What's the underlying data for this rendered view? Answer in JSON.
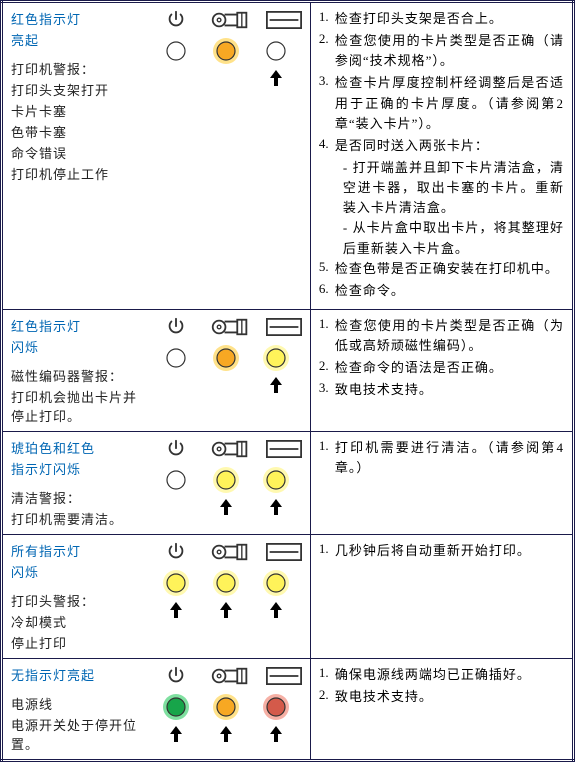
{
  "colors": {
    "border": "#1a1a4a",
    "title": "#0066b3",
    "text": "#222222",
    "led_off_fill": "#ffffff",
    "led_off_stroke": "#333333",
    "led_amber_fill": "#f7a823",
    "led_amber_glow": "#ffe28a",
    "led_yellow_fill": "#fff35a",
    "led_yellow_glow": "#fff9b0",
    "led_green_fill": "#17a54a",
    "led_green_glow": "#7fe0a0",
    "led_red_fill": "#d45a4a",
    "led_red_glow": "#f6b0a5",
    "icon_stroke": "#333333"
  },
  "header_icons": {
    "power": "power-icon",
    "roller": "roller-icon",
    "slot": "slot-icon"
  },
  "rows": [
    {
      "title_lines": [
        "红色指示灯",
        "亮起"
      ],
      "leds": [
        {
          "state": "off"
        },
        {
          "state": "amber"
        },
        {
          "state": "off"
        }
      ],
      "arrows": [
        false,
        false,
        true
      ],
      "desc_heading": "打印机警报：",
      "desc_lines": [
        "打印头支架打开",
        "卡片卡塞",
        "色带卡塞",
        "命令错误",
        "打印机停止工作"
      ],
      "steps": [
        {
          "n": "1.",
          "t": "检查打印头支架是否合上。"
        },
        {
          "n": "2.",
          "t": "检查您使用的卡片类型是否正确（请参阅“技术规格”）。"
        },
        {
          "n": "3.",
          "t": "检查卡片厚度控制杆经调整后是否适用于正确的卡片厚度。（请参阅第2章“装入卡片”）。"
        },
        {
          "n": "4.",
          "t": "是否同时送入两张卡片：",
          "subs": [
            "- 打开端盖并且卸下卡片清洁盒，清空进卡器，取出卡塞的卡片。重新装入卡片清洁盒。",
            "- 从卡片盒中取出卡片，将其整理好后重新装入卡片盒。"
          ]
        },
        {
          "n": "5.",
          "t": "检查色带是否正确安装在打印机中。"
        },
        {
          "n": "6.",
          "t": "检查命令。"
        }
      ]
    },
    {
      "title_lines": [
        "红色指示灯",
        "闪烁"
      ],
      "leds": [
        {
          "state": "off"
        },
        {
          "state": "amber"
        },
        {
          "state": "yellow"
        }
      ],
      "arrows": [
        false,
        false,
        true
      ],
      "desc_heading": "磁性编码器警报：",
      "desc_lines": [
        "打印机会抛出卡片并停止打印。"
      ],
      "steps": [
        {
          "n": "1.",
          "t": "检查您使用的卡片类型是否正确（为低或高矫顽磁性编码）。"
        },
        {
          "n": "2.",
          "t": "检查命令的语法是否正确。"
        },
        {
          "n": "3.",
          "t": "致电技术支持。"
        }
      ]
    },
    {
      "title_lines": [
        "琥珀色和红色",
        "指示灯闪烁"
      ],
      "leds": [
        {
          "state": "off"
        },
        {
          "state": "yellow"
        },
        {
          "state": "yellow"
        }
      ],
      "arrows": [
        false,
        true,
        true
      ],
      "desc_heading": "清洁警报：",
      "desc_lines": [
        "打印机需要清洁。"
      ],
      "steps": [
        {
          "n": "1.",
          "t": "打印机需要进行清洁。（请参阅第4章。）"
        }
      ]
    },
    {
      "title_lines": [
        "所有指示灯",
        "闪烁"
      ],
      "leds": [
        {
          "state": "yellow"
        },
        {
          "state": "yellow"
        },
        {
          "state": "yellow"
        }
      ],
      "arrows": [
        true,
        true,
        true
      ],
      "desc_heading": "打印头警报：",
      "desc_lines": [
        "冷却模式",
        "停止打印"
      ],
      "steps": [
        {
          "n": "1.",
          "t": "几秒钟后将自动重新开始打印。"
        }
      ]
    },
    {
      "title_lines": [
        "无指示灯亮起"
      ],
      "leds": [
        {
          "state": "green"
        },
        {
          "state": "amber"
        },
        {
          "state": "red"
        }
      ],
      "arrows": [
        true,
        true,
        true
      ],
      "desc_heading": "电源线",
      "desc_lines": [
        "电源开关处于停开位置。"
      ],
      "steps": [
        {
          "n": "1.",
          "t": "确保电源线两端均已正确插好。"
        },
        {
          "n": "2.",
          "t": "致电技术支持。"
        }
      ]
    }
  ]
}
